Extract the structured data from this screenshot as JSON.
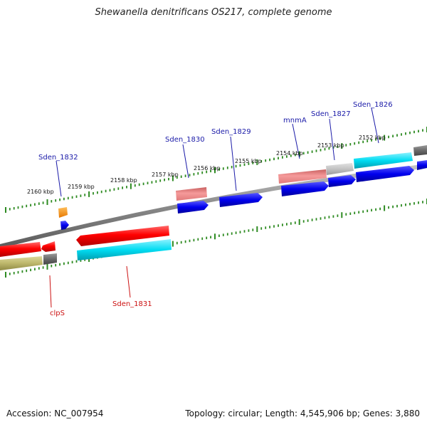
{
  "title": "Shewanella denitrificans OS217, complete genome",
  "footer": {
    "accession": "Accession: NC_007954",
    "summary": "Topology: circular; Length: 4,545,906 bp; Genes: 3,880"
  },
  "ticks": [
    "2160 kbp",
    "2159 kbp",
    "2158 kbp",
    "2157 kbp",
    "2156 kbp",
    "2155 kbp",
    "2154 kbp",
    "2153 kbp",
    "2152 kbp"
  ],
  "gene_labels": {
    "sden_1832": "Sden_1832",
    "sden_1830": "Sden_1830",
    "sden_1829": "Sden_1829",
    "mnma": "mnmA",
    "sden_1827": "Sden_1827",
    "sden_1826": "Sden_1826",
    "clps": "clpS",
    "sden_1831": "Sden_1831"
  },
  "colors": {
    "cds_red": "#ff0000",
    "cds_pink": "#f08080",
    "cds_blue": "#0000ee",
    "cds_cyan": "#00d8f0",
    "cds_orange": "#ff8c00",
    "cds_olive": "#bdb76b",
    "cds_gray": "#777777",
    "tick_green": "#2e8b22",
    "label_blue": "#1a1aa8",
    "label_red": "#cc1111"
  }
}
